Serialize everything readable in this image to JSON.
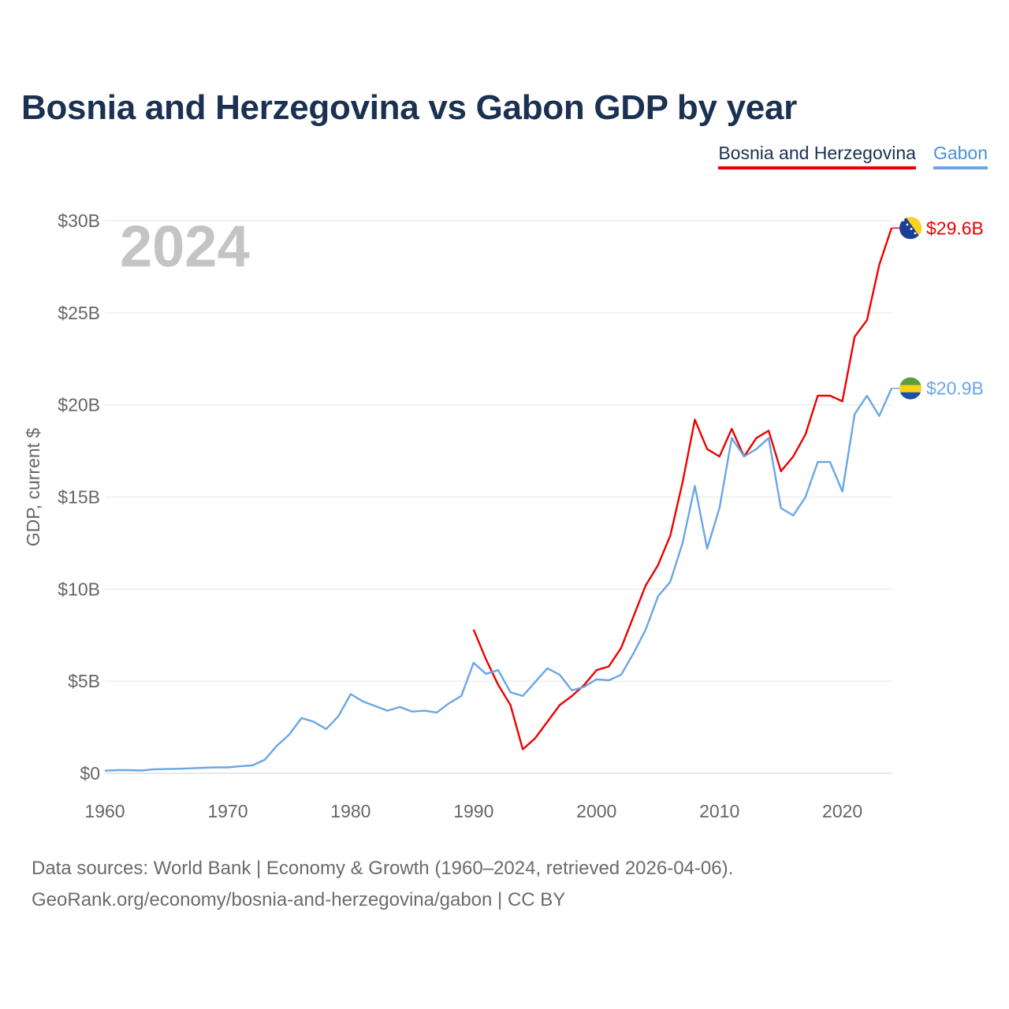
{
  "title": "Bosnia and Herzegovina vs Gabon GDP by year",
  "legend": {
    "bih_label": "Bosnia and Herzegovina",
    "gabon_label": "Gabon"
  },
  "year_watermark": "2024",
  "footer": {
    "sources": "Data sources: World Bank | Economy & Growth (1960–2024, retrieved 2026-04-06).",
    "credit": "GeoRank.org/economy/bosnia-and-herzegovina/gabon | CC BY"
  },
  "colors": {
    "bih": "#ee0000",
    "gabon": "#6aa6e6",
    "title": "#1b3152",
    "grid": "#e6e6e6",
    "axis_text": "#666666"
  },
  "chart_data": {
    "type": "line",
    "title": "Bosnia and Herzegovina vs Gabon GDP by year",
    "xlabel": "",
    "ylabel": "GDP, current $",
    "xlim": [
      1960,
      2024
    ],
    "ylim": [
      0,
      30
    ],
    "y_unit": "billion USD",
    "x_ticks": [
      1960,
      1970,
      1980,
      1990,
      2000,
      2010,
      2020
    ],
    "x_tick_labels": [
      "1960",
      "1970",
      "1980",
      "1990",
      "2000",
      "2010",
      "2020"
    ],
    "y_ticks": [
      0,
      5,
      10,
      15,
      20,
      25,
      30
    ],
    "y_tick_labels": [
      "$0",
      "$5B",
      "$10B",
      "$15B",
      "$20B",
      "$25B",
      "$30B"
    ],
    "grid": true,
    "legend_position": "top-right",
    "series": [
      {
        "name": "Bosnia and Herzegovina",
        "key": "bih",
        "end_label": "$29.6B",
        "x": [
          1990,
          1991,
          1992,
          1993,
          1994,
          1995,
          1996,
          1997,
          1998,
          1999,
          2000,
          2001,
          2002,
          2003,
          2004,
          2005,
          2006,
          2007,
          2008,
          2009,
          2010,
          2011,
          2012,
          2013,
          2014,
          2015,
          2016,
          2017,
          2018,
          2019,
          2020,
          2021,
          2022,
          2023,
          2024
        ],
        "values": [
          7.8,
          6.2,
          4.8,
          3.7,
          1.3,
          1.9,
          2.8,
          3.7,
          4.2,
          4.8,
          5.6,
          5.8,
          6.8,
          8.5,
          10.2,
          11.3,
          12.9,
          15.8,
          19.2,
          17.6,
          17.2,
          18.7,
          17.2,
          18.2,
          18.6,
          16.4,
          17.2,
          18.4,
          20.5,
          20.5,
          20.2,
          23.7,
          24.6,
          27.6,
          29.6
        ]
      },
      {
        "name": "Gabon",
        "key": "gabon",
        "end_label": "$20.9B",
        "x": [
          1960,
          1961,
          1962,
          1963,
          1964,
          1965,
          1966,
          1967,
          1968,
          1969,
          1970,
          1971,
          1972,
          1973,
          1974,
          1975,
          1976,
          1977,
          1978,
          1979,
          1980,
          1981,
          1982,
          1983,
          1984,
          1985,
          1986,
          1987,
          1988,
          1989,
          1990,
          1991,
          1992,
          1993,
          1994,
          1995,
          1996,
          1997,
          1998,
          1999,
          2000,
          2001,
          2002,
          2003,
          2004,
          2005,
          2006,
          2007,
          2008,
          2009,
          2010,
          2011,
          2012,
          2013,
          2014,
          2015,
          2016,
          2017,
          2018,
          2019,
          2020,
          2021,
          2022,
          2023,
          2024
        ],
        "values": [
          0.14,
          0.17,
          0.17,
          0.15,
          0.22,
          0.23,
          0.25,
          0.27,
          0.3,
          0.32,
          0.32,
          0.38,
          0.43,
          0.73,
          1.5,
          2.1,
          3.0,
          2.8,
          2.4,
          3.1,
          4.3,
          3.9,
          3.65,
          3.4,
          3.6,
          3.35,
          3.4,
          3.3,
          3.8,
          4.2,
          6.0,
          5.4,
          5.6,
          4.4,
          4.2,
          4.95,
          5.7,
          5.35,
          4.5,
          4.7,
          5.1,
          5.05,
          5.35,
          6.5,
          7.8,
          9.6,
          10.4,
          12.5,
          15.6,
          12.2,
          14.4,
          18.2,
          17.2,
          17.6,
          18.2,
          14.4,
          14.0,
          15.0,
          16.9,
          16.9,
          15.3,
          19.5,
          20.5,
          19.4,
          20.9
        ]
      }
    ]
  }
}
